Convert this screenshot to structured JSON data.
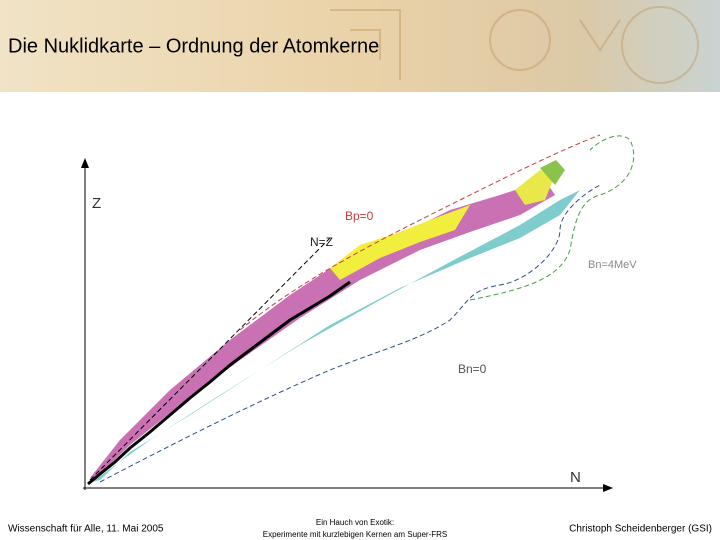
{
  "header": {
    "title": "Die Nuklidkarte – Ordnung der Atomkerne"
  },
  "diagram": {
    "y_axis_label": "Z",
    "x_axis_label": "N",
    "line_nz": "N=Z",
    "line_bp": "Bp=0",
    "line_bn4": "Bn=4MeV",
    "line_bn0": "Bn=0"
  },
  "footer": {
    "left": "Wissenschaft für Alle, 11. Mai 2005",
    "center": [
      "Ein Hauch von Exotik:",
      "Experimente mit kurzlebigen Kernen am Super-FRS"
    ],
    "right": "Christoph Scheidenberger (GSI)"
  }
}
